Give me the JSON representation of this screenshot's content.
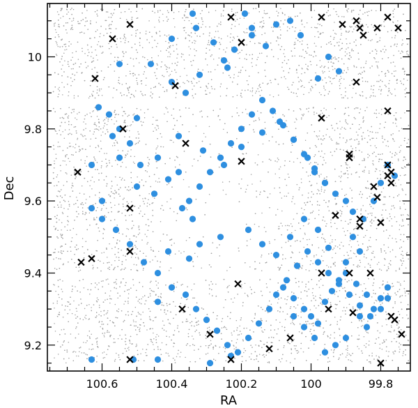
{
  "chart_data": {
    "type": "scatter",
    "xlabel": "RA",
    "ylabel": "Dec",
    "xlim": [
      100.757,
      99.715
    ],
    "ylim": [
      9.128,
      10.148
    ],
    "x_inverted": true,
    "grid": false,
    "x_ticks": [
      100.6,
      100.4,
      100.2,
      100,
      99.8
    ],
    "x_tick_labels": [
      "100.6",
      "100.4",
      "100.2",
      "100",
      "99.8"
    ],
    "y_ticks": [
      9.2,
      9.4,
      9.6,
      9.8,
      10
    ],
    "y_tick_labels": [
      "9.2",
      "9.4",
      "9.6",
      "9.8",
      "10"
    ],
    "colors": {
      "background_field": "#a0a0a0",
      "members": "#2e8fe0",
      "crosses": "#000000"
    },
    "background_field": {
      "marker": "small-gray-dot",
      "approx_count": 9000,
      "x_range": [
        100.74,
        99.72
      ],
      "y_range": [
        9.15,
        10.135
      ],
      "bands_dec": [
        [
          9.15,
          9.385
        ],
        [
          9.405,
          9.86
        ],
        [
          9.885,
          10.135
        ]
      ],
      "sparse_center": [
        100.27,
        9.62
      ]
    },
    "series": [
      {
        "marker": "filled-circle",
        "x": [
          100.63,
          100.51,
          100.44,
          100.29,
          100.23,
          100.5,
          100.57,
          100.55,
          100.6,
          100.63,
          100.5,
          100.55,
          100.34,
          100.19,
          100.1,
          100.17,
          100.06,
          100.03,
          99.98,
          99.92,
          99.95,
          100.46,
          100.4,
          100.33,
          100.28,
          100.25,
          100.22,
          100.17,
          100.13,
          100.4,
          100.36,
          100.32,
          100.24,
          100.38,
          100.31,
          100.25,
          100.2,
          100.14,
          100.09,
          100.05,
          100.01,
          99.99,
          99.96,
          99.93,
          99.9,
          99.88,
          99.85,
          99.82,
          99.8,
          99.78,
          99.76,
          99.88,
          99.86,
          99.9,
          99.95,
          99.98,
          100.02,
          100.06,
          100.1,
          100.14,
          100.18,
          100.26,
          100.32,
          100.35,
          100.41,
          100.44,
          100.48,
          100.52,
          100.56,
          100.6,
          100.63,
          100.45,
          100.41,
          100.38,
          100.37,
          100.34,
          100.44,
          100.49,
          100.52,
          100.55,
          100.58,
          100.61,
          100.08,
          100.05,
          100.02,
          100.0,
          99.98,
          99.96,
          99.94,
          99.92,
          99.9,
          99.87,
          99.84,
          99.82,
          99.8,
          99.78,
          99.86,
          99.84,
          99.9,
          99.93,
          99.96,
          99.99,
          100.02,
          100.05,
          100.44,
          100.4,
          100.36,
          100.33,
          100.3,
          100.27,
          100.24,
          100.21,
          100.18,
          100.15,
          100.12,
          100.1,
          100.07,
          100.04,
          100.01,
          99.98,
          99.95,
          99.92,
          99.89,
          99.86,
          99.83,
          99.8,
          99.78,
          100.35,
          100.32,
          100.29,
          100.26,
          100.23,
          100.2,
          100.17,
          100.14,
          100.11,
          100.08,
          100.05,
          100.02,
          99.99,
          99.96
        ],
        "y": [
          9.16,
          9.16,
          9.16,
          9.15,
          9.17,
          9.83,
          9.78,
          9.72,
          9.6,
          9.7,
          9.64,
          9.98,
          10.12,
          10.12,
          10.09,
          10.08,
          10.1,
          10.06,
          9.94,
          9.96,
          10.0,
          9.98,
          10.05,
          10.08,
          10.04,
          9.99,
          10.02,
          10.06,
          10.03,
          9.93,
          9.9,
          9.95,
          9.97,
          9.78,
          9.74,
          9.7,
          9.75,
          9.79,
          9.82,
          9.77,
          9.72,
          9.68,
          9.65,
          9.62,
          9.6,
          9.57,
          9.55,
          9.6,
          9.65,
          9.7,
          9.67,
          9.5,
          9.46,
          9.43,
          9.47,
          9.52,
          9.55,
          9.5,
          9.45,
          9.48,
          9.52,
          9.5,
          9.48,
          9.44,
          9.46,
          9.4,
          9.43,
          9.48,
          9.52,
          9.55,
          9.58,
          9.62,
          9.66,
          9.68,
          9.58,
          9.55,
          9.72,
          9.7,
          9.76,
          9.8,
          9.84,
          9.86,
          9.36,
          9.33,
          9.3,
          9.28,
          9.26,
          9.32,
          9.35,
          9.38,
          9.4,
          9.37,
          9.34,
          9.3,
          9.33,
          9.36,
          9.28,
          9.25,
          9.22,
          9.2,
          9.18,
          9.22,
          9.25,
          9.28,
          9.32,
          9.36,
          9.34,
          9.3,
          9.27,
          9.24,
          9.2,
          9.18,
          9.22,
          9.26,
          9.3,
          9.34,
          9.38,
          9.42,
          9.46,
          9.43,
          9.4,
          9.37,
          9.34,
          9.31,
          9.28,
          9.3,
          9.33,
          9.6,
          9.64,
          9.68,
          9.72,
          9.76,
          9.8,
          9.84,
          9.88,
          9.85,
          9.81,
          9.77,
          9.73,
          9.69,
          9.65
        ]
      },
      {
        "marker": "x-cross",
        "x": [
          100.52,
          100.57,
          100.62,
          100.39,
          100.23,
          100.2,
          99.97,
          99.91,
          99.86,
          99.85,
          99.87,
          99.81,
          99.78,
          99.75,
          99.87,
          99.78,
          99.97,
          99.78,
          100.54,
          100.67,
          100.36,
          100.2,
          99.89,
          99.77,
          99.89,
          99.78,
          99.77,
          99.82,
          99.81,
          99.93,
          99.86,
          99.86,
          99.8,
          100.52,
          100.52,
          100.63,
          100.66,
          99.97,
          99.89,
          99.83,
          100.21,
          100.37,
          99.95,
          99.88,
          99.77,
          99.76,
          100.29,
          100.06,
          100.12,
          99.74,
          100.23,
          100.52,
          99.8
        ],
        "y": [
          10.09,
          10.05,
          9.94,
          9.92,
          10.11,
          10.04,
          10.11,
          10.09,
          10.08,
          10.06,
          10.1,
          10.08,
          10.11,
          10.08,
          9.93,
          9.85,
          9.83,
          9.7,
          9.8,
          9.68,
          9.76,
          9.71,
          9.73,
          9.68,
          9.72,
          9.67,
          9.65,
          9.64,
          9.61,
          9.56,
          9.55,
          9.53,
          9.54,
          9.58,
          9.46,
          9.44,
          9.43,
          9.4,
          9.4,
          9.4,
          9.37,
          9.3,
          9.3,
          9.29,
          9.28,
          9.27,
          9.23,
          9.22,
          9.19,
          9.23,
          9.16,
          9.16,
          9.15
        ]
      }
    ]
  }
}
